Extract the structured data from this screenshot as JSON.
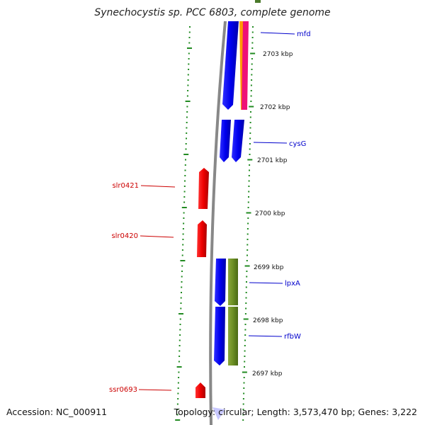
{
  "title": "Synechocystis sp. PCC 6803, complete genome",
  "footer": {
    "accession": "Accession: NC_000911",
    "topology": "Topology: circular; Length: 3,573,470 bp; Genes: 3,222"
  },
  "colors": {
    "backbone": "#808080",
    "forward_gene": "#0000ee",
    "reverse_gene": "#ee0000",
    "rna_gene": "#6b8e23",
    "orange_feature": "#ff9900",
    "magenta_feature": "#ee1177",
    "tick": "#228b22",
    "label_blue": "#0000cc",
    "label_red": "#cc0000"
  },
  "kbp_labels": [
    "2703 kbp",
    "2702 kbp",
    "2701 kbp",
    "2700 kbp",
    "2699 kbp",
    "2698 kbp",
    "2697 kbp"
  ],
  "gene_labels": {
    "right": [
      "mfd",
      "cysG",
      "lpxA",
      "rfbW"
    ],
    "left": [
      "slr0421",
      "slr0420",
      "ssr0693"
    ]
  }
}
